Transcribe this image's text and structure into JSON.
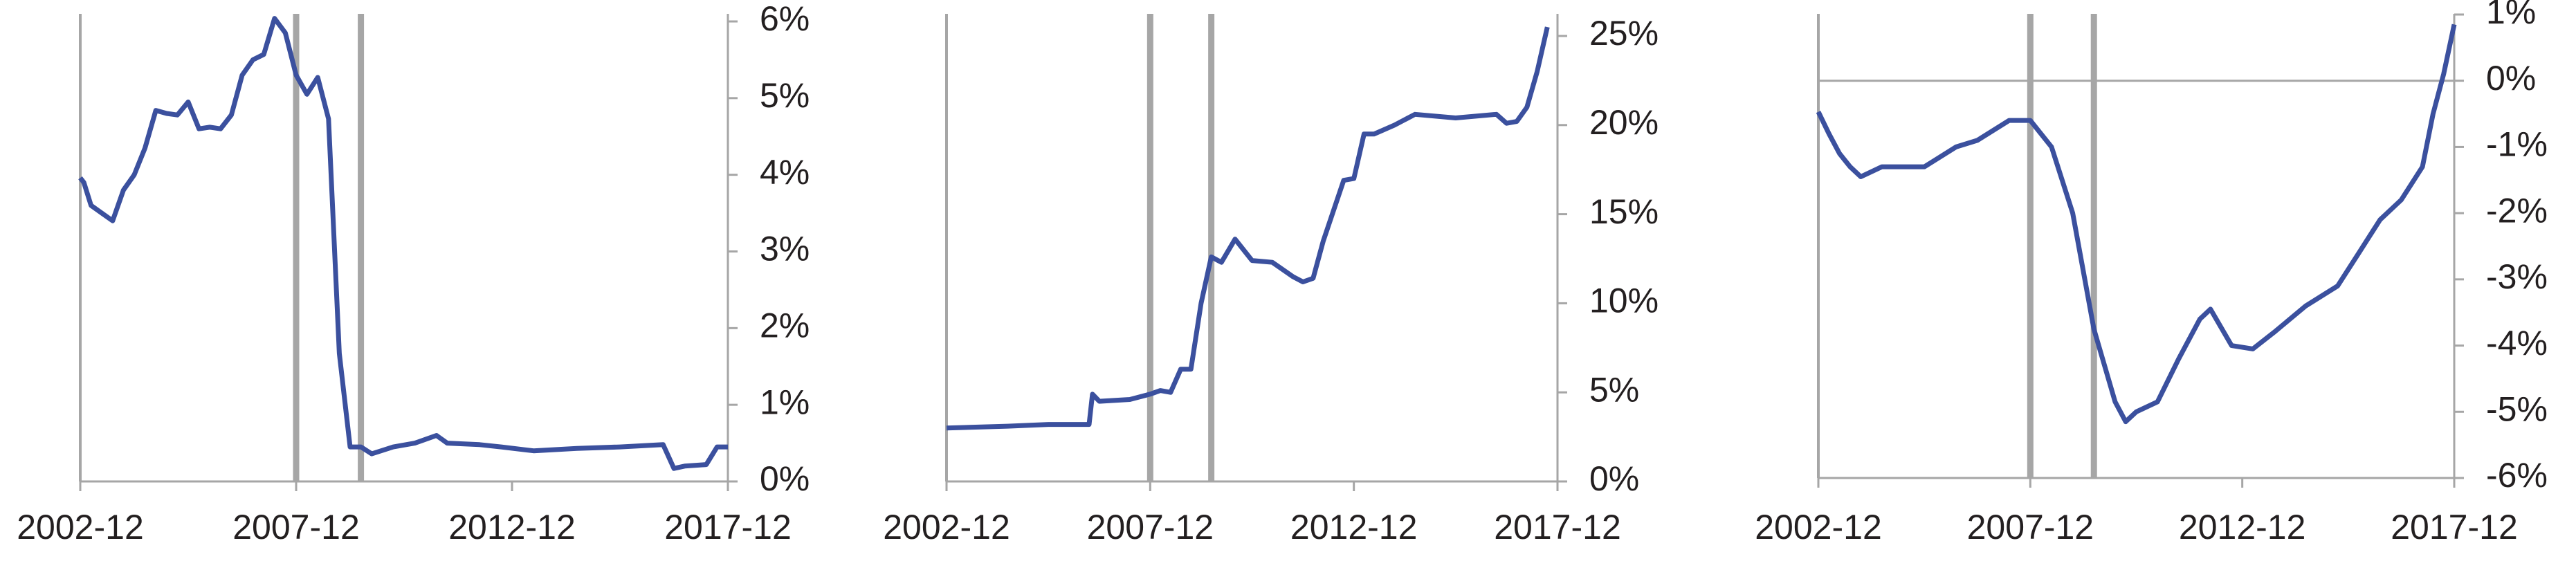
{
  "chart_data": [
    {
      "type": "line",
      "x": [
        "2002-12",
        "2003-01",
        "2003-03",
        "2003-06",
        "2003-09",
        "2003-12",
        "2004-03",
        "2004-06",
        "2004-09",
        "2004-12",
        "2005-03",
        "2005-06",
        "2005-09",
        "2005-12",
        "2006-03",
        "2006-06",
        "2006-09",
        "2006-12",
        "2007-03",
        "2007-06",
        "2007-09",
        "2007-12",
        "2008-03",
        "2008-06",
        "2008-09",
        "2008-12",
        "2009-03",
        "2009-06",
        "2009-09",
        "2010-03",
        "2010-09",
        "2011-03",
        "2011-06",
        "2012-03",
        "2012-09",
        "2013-06",
        "2014-06",
        "2015-06",
        "2016-06",
        "2016-09",
        "2016-12",
        "2017-06",
        "2017-09",
        "2017-12"
      ],
      "series": [
        {
          "color": "#3b509e",
          "values": [
            3.96,
            3.9,
            3.6,
            3.5,
            3.4,
            3.8,
            4.0,
            4.35,
            4.84,
            4.8,
            4.78,
            4.95,
            4.6,
            4.62,
            4.6,
            4.78,
            5.3,
            5.5,
            5.57,
            6.04,
            5.85,
            5.3,
            5.05,
            5.27,
            4.73,
            1.67,
            0.45,
            0.45,
            0.36,
            0.45,
            0.5,
            0.6,
            0.5,
            0.48,
            0.45,
            0.4,
            0.43,
            0.45,
            0.48,
            0.17,
            0.2,
            0.22,
            0.45,
            0.45
          ]
        }
      ],
      "xlim": [
        "2002-12",
        "2017-12"
      ],
      "xticks": [
        "2002-12",
        "2007-12",
        "2012-12",
        "2017-12"
      ],
      "ylim": [
        0,
        6
      ],
      "yticks": [
        {
          "value": 0,
          "label": "0%"
        },
        {
          "value": 1,
          "label": "1%"
        },
        {
          "value": 2,
          "label": "2%"
        },
        {
          "value": 3,
          "label": "3%"
        },
        {
          "value": 4,
          "label": "4%"
        },
        {
          "value": 5,
          "label": "5%"
        },
        {
          "value": 6,
          "label": "6%"
        }
      ],
      "vlines": [
        "2007-12",
        "2009-06"
      ]
    },
    {
      "type": "line",
      "x": [
        "2002-12",
        "2004-06",
        "2005-06",
        "2006-06",
        "2006-07",
        "2006-09",
        "2007-06",
        "2007-12",
        "2008-03",
        "2008-06",
        "2008-09",
        "2008-12",
        "2009-03",
        "2009-06",
        "2009-09",
        "2010-01",
        "2010-06",
        "2010-12",
        "2011-06",
        "2011-09",
        "2011-12",
        "2012-03",
        "2012-09",
        "2012-12",
        "2013-03",
        "2013-06",
        "2013-12",
        "2014-06",
        "2015-06",
        "2016-06",
        "2016-09",
        "2016-12",
        "2017-03",
        "2017-06",
        "2017-09"
      ],
      "series": [
        {
          "color": "#3b509e",
          "values": [
            3.0,
            3.1,
            3.2,
            3.2,
            4.9,
            4.5,
            4.6,
            4.9,
            5.1,
            5.0,
            6.3,
            6.3,
            10.0,
            12.6,
            12.3,
            13.6,
            12.4,
            12.3,
            11.5,
            11.2,
            11.4,
            13.5,
            16.9,
            17.0,
            19.5,
            19.5,
            20.0,
            20.6,
            20.4,
            20.6,
            20.1,
            20.2,
            21.0,
            23.0,
            25.5
          ]
        }
      ],
      "xlim": [
        "2002-12",
        "2017-12"
      ],
      "xticks": [
        "2002-12",
        "2007-12",
        "2012-12",
        "2017-12"
      ],
      "ylim": [
        0,
        25
      ],
      "yticks": [
        {
          "value": 0,
          "label": "0%"
        },
        {
          "value": 5,
          "label": "5%"
        },
        {
          "value": 10,
          "label": "10%"
        },
        {
          "value": 15,
          "label": "15%"
        },
        {
          "value": 20,
          "label": "20%"
        },
        {
          "value": 25,
          "label": "25%"
        }
      ],
      "vlines": [
        "2007-12",
        "2009-06"
      ]
    },
    {
      "type": "line",
      "x": [
        "2002-12",
        "2003-03",
        "2003-06",
        "2003-09",
        "2003-12",
        "2004-06",
        "2005-06",
        "2006-03",
        "2006-09",
        "2007-06",
        "2007-12",
        "2008-06",
        "2008-12",
        "2009-06",
        "2009-12",
        "2010-03",
        "2010-06",
        "2010-12",
        "2011-06",
        "2011-12",
        "2012-03",
        "2012-09",
        "2013-03",
        "2013-09",
        "2014-06",
        "2015-03",
        "2015-09",
        "2016-03",
        "2016-09",
        "2017-03",
        "2017-06",
        "2017-09",
        "2017-12"
      ],
      "series": [
        {
          "color": "#3b509e",
          "values": [
            -0.47,
            -0.8,
            -1.1,
            -1.3,
            -1.45,
            -1.3,
            -1.3,
            -1.0,
            -0.9,
            -0.6,
            -0.6,
            -1.0,
            -2.0,
            -3.75,
            -4.85,
            -5.15,
            -5.0,
            -4.85,
            -4.2,
            -3.6,
            -3.45,
            -4.0,
            -4.05,
            -3.8,
            -3.4,
            -3.1,
            -2.6,
            -2.1,
            -1.8,
            -1.3,
            -0.5,
            0.1,
            0.85
          ]
        }
      ],
      "xlim": [
        "2002-12",
        "2017-12"
      ],
      "xticks": [
        "2002-12",
        "2007-12",
        "2012-12",
        "2017-12"
      ],
      "ylim": [
        -6,
        1
      ],
      "yticks": [
        {
          "value": -6,
          "label": "-6%"
        },
        {
          "value": -5,
          "label": "-5%"
        },
        {
          "value": -4,
          "label": "-4%"
        },
        {
          "value": -3,
          "label": "-3%"
        },
        {
          "value": -2,
          "label": "-2%"
        },
        {
          "value": -1,
          "label": "-1%"
        },
        {
          "value": 0,
          "label": "0%"
        },
        {
          "value": 1,
          "label": "1%"
        }
      ],
      "vlines": [
        "2007-12",
        "2009-06"
      ]
    }
  ]
}
